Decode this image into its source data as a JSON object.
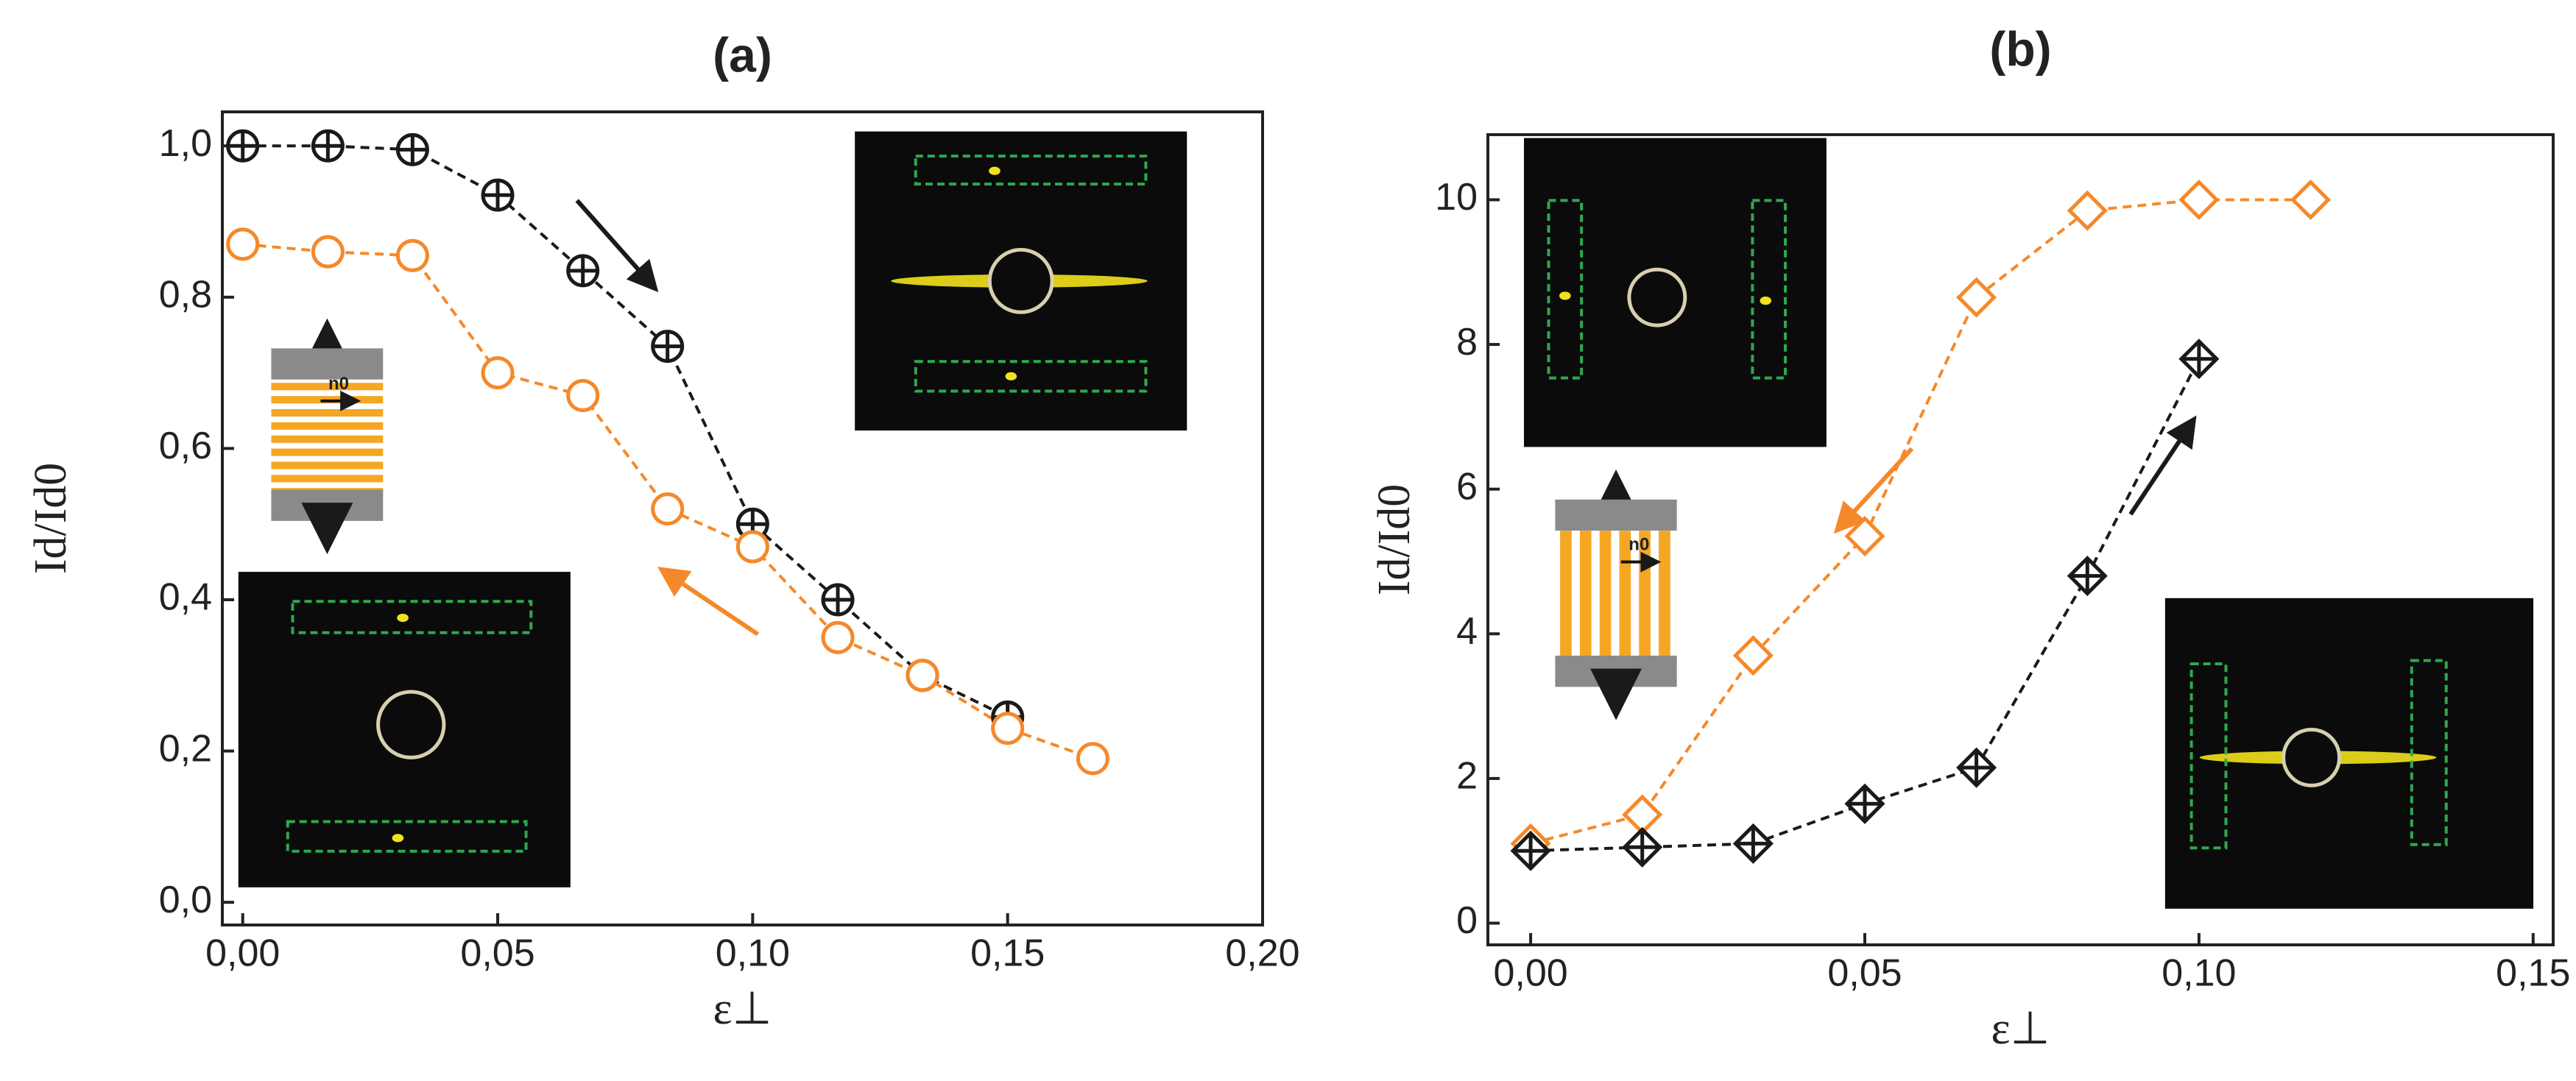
{
  "chart_data": [
    {
      "type": "scatter",
      "title": "(a)",
      "xlabel": "ε⊥",
      "ylabel": "Id/Id0",
      "inset_label": "n0",
      "xlim": [
        -0.004,
        0.2
      ],
      "ylim": [
        -0.03,
        1.045
      ],
      "xticks": [
        {
          "value": 0,
          "label": "0,00"
        },
        {
          "value": 0.05,
          "label": "0,05"
        },
        {
          "value": 0.1,
          "label": "0,10"
        },
        {
          "value": 0.15,
          "label": "0,15"
        },
        {
          "value": 0.2,
          "label": "0,20"
        }
      ],
      "yticks": [
        {
          "value": 0,
          "label": "0,0"
        },
        {
          "value": 0.2,
          "label": "0,2"
        },
        {
          "value": 0.4,
          "label": "0,4"
        },
        {
          "value": 0.6,
          "label": "0,6"
        },
        {
          "value": 0.8,
          "label": "0,8"
        },
        {
          "value": 1,
          "label": "1,0"
        }
      ],
      "series": [
        {
          "color": "#1a1a1a",
          "marker": "circle-plus",
          "x": [
            0,
            0.0167,
            0.0333,
            0.05,
            0.0667,
            0.0833,
            0.1,
            0.1167,
            0.1333,
            0.15
          ],
          "values": [
            1.0,
            1.0,
            0.995,
            0.935,
            0.835,
            0.735,
            0.5,
            0.4,
            0.3,
            0.245
          ]
        },
        {
          "color": "#f5892a",
          "marker": "circle",
          "x": [
            0,
            0.0167,
            0.0333,
            0.05,
            0.0667,
            0.0833,
            0.1,
            0.1167,
            0.1333,
            0.15,
            0.1667
          ],
          "values": [
            0.87,
            0.86,
            0.855,
            0.7,
            0.67,
            0.52,
            0.47,
            0.35,
            0.3,
            0.23,
            0.19
          ]
        }
      ]
    },
    {
      "type": "scatter",
      "title": "(b)",
      "xlabel": "ε⊥",
      "ylabel": "Id/Id0",
      "inset_label": "n0",
      "xlim": [
        -0.0064,
        0.153
      ],
      "ylim": [
        -0.3,
        10.9
      ],
      "xticks": [
        {
          "value": 0,
          "label": "0,00"
        },
        {
          "value": 0.05,
          "label": "0,05"
        },
        {
          "value": 0.1,
          "label": "0,10"
        },
        {
          "value": 0.15,
          "label": "0,15"
        }
      ],
      "yticks": [
        0,
        2,
        4,
        6,
        8,
        10
      ],
      "series": [
        {
          "color": "#f5892a",
          "marker": "diamond",
          "x": [
            0,
            0.0167,
            0.0333,
            0.05,
            0.0667,
            0.0833,
            0.1,
            0.1167
          ],
          "values": [
            1.1,
            1.5,
            3.7,
            5.35,
            8.65,
            9.85,
            10.0,
            10.0
          ]
        },
        {
          "color": "#1a1a1a",
          "marker": "diamond-plus",
          "x": [
            0,
            0.0167,
            0.0333,
            0.05,
            0.0667,
            0.0833,
            0.1
          ],
          "values": [
            1.0,
            1.05,
            1.1,
            1.65,
            2.15,
            4.8,
            7.8
          ]
        }
      ]
    }
  ]
}
